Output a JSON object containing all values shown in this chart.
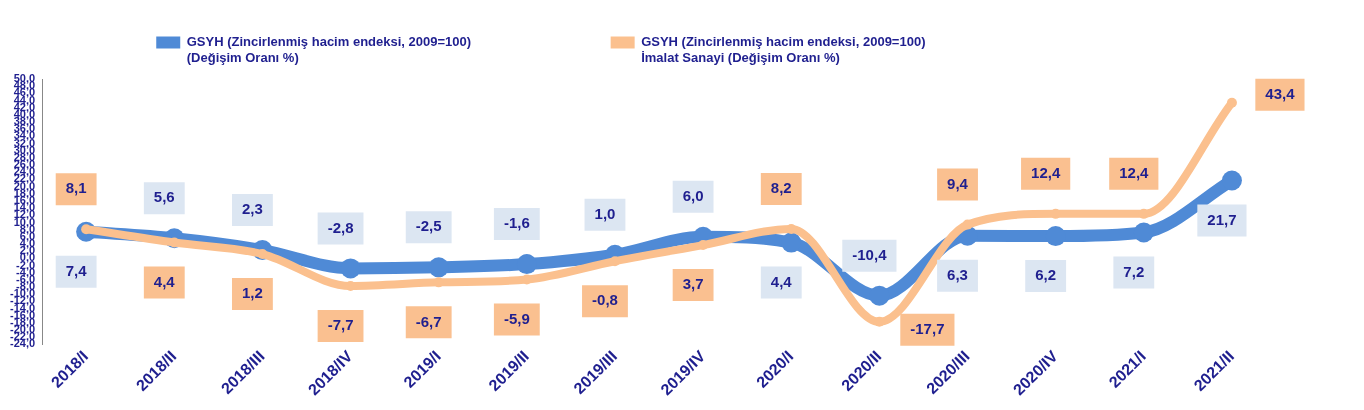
{
  "chart_data": {
    "type": "line",
    "categories": [
      "2018/I",
      "2018/II",
      "2018/III",
      "2018/IV",
      "2019/I",
      "2019/II",
      "2019/III",
      "2019/IV",
      "2020/I",
      "2020/II",
      "2020/III",
      "2020/IV",
      "2021/I",
      "2021/II"
    ],
    "series": [
      {
        "name": "GSYH (Zincirlenmiş hacim endeksi, 2009=100)\n(Değişim Oranı %)",
        "color": "#4f8ad6",
        "values": [
          7.4,
          5.6,
          2.3,
          -2.8,
          -2.5,
          -1.6,
          1.0,
          6.0,
          4.4,
          -10.4,
          6.3,
          6.2,
          7.2,
          21.7
        ],
        "value_labels": [
          "7,4",
          "5,6",
          "2,3",
          "-2,8",
          "-2,5",
          "-1,6",
          "1,0",
          "6,0",
          "4,4",
          "-10,4",
          "6,3",
          "6,2",
          "7,2",
          "21,7"
        ]
      },
      {
        "name": "GSYH (Zincirlenmiş hacim endeksi, 2009=100)\nİmalat Sanayi (Değişim Oranı %)",
        "color": "#fbc08e",
        "values": [
          8.1,
          4.4,
          1.2,
          -7.7,
          -6.7,
          -5.9,
          -0.8,
          3.7,
          8.2,
          -17.7,
          9.4,
          12.4,
          12.4,
          43.4
        ],
        "value_labels": [
          "8,1",
          "4,4",
          "1,2",
          "-7,7",
          "-6,7",
          "-5,9",
          "-0,8",
          "3,7",
          "8,2",
          "-17,7",
          "9,4",
          "12,4",
          "12,4",
          "43,4"
        ]
      }
    ],
    "ylim": [
      -24,
      50
    ],
    "yticks": [
      {
        "value": -24,
        "label": "-24,0"
      },
      {
        "value": -22,
        "label": "-22,0"
      },
      {
        "value": -20,
        "label": "-20,0"
      },
      {
        "value": -18,
        "label": "-18,0"
      },
      {
        "value": -16,
        "label": "-16,0"
      },
      {
        "value": -14,
        "label": "-14,0"
      },
      {
        "value": -12,
        "label": "-12,0"
      },
      {
        "value": -10,
        "label": "-10,0"
      },
      {
        "value": -8,
        "label": "-8,0"
      },
      {
        "value": -6,
        "label": "-6,0"
      },
      {
        "value": -4,
        "label": "-4,0"
      },
      {
        "value": -2,
        "label": "-2,0"
      },
      {
        "value": 0,
        "label": "0,0"
      },
      {
        "value": 2,
        "label": "2,0"
      },
      {
        "value": 4,
        "label": "4,0"
      },
      {
        "value": 6,
        "label": "6,0"
      },
      {
        "value": 8,
        "label": "8,0"
      },
      {
        "value": 10,
        "label": "10,0"
      },
      {
        "value": 12,
        "label": "12,0"
      },
      {
        "value": 14,
        "label": "14,0"
      },
      {
        "value": 16,
        "label": "16,0"
      },
      {
        "value": 18,
        "label": "18,0"
      },
      {
        "value": 20,
        "label": "20,0"
      },
      {
        "value": 22,
        "label": "22,0"
      },
      {
        "value": 24,
        "label": "24,0"
      },
      {
        "value": 26,
        "label": "26,0"
      },
      {
        "value": 28,
        "label": "28,0"
      },
      {
        "value": 30,
        "label": "30,0"
      },
      {
        "value": 32,
        "label": "32,0"
      },
      {
        "value": 34,
        "label": "34,0"
      },
      {
        "value": 36,
        "label": "36,0"
      },
      {
        "value": 38,
        "label": "38,0"
      },
      {
        "value": 40,
        "label": "40,0"
      },
      {
        "value": 42,
        "label": "42,0"
      },
      {
        "value": 44,
        "label": "44,0"
      },
      {
        "value": 46,
        "label": "46,0"
      },
      {
        "value": 48,
        "label": "48,0"
      },
      {
        "value": 50,
        "label": "50,0"
      }
    ],
    "grid": false,
    "legend": "top",
    "marker": "circle",
    "line_style": "solid"
  }
}
